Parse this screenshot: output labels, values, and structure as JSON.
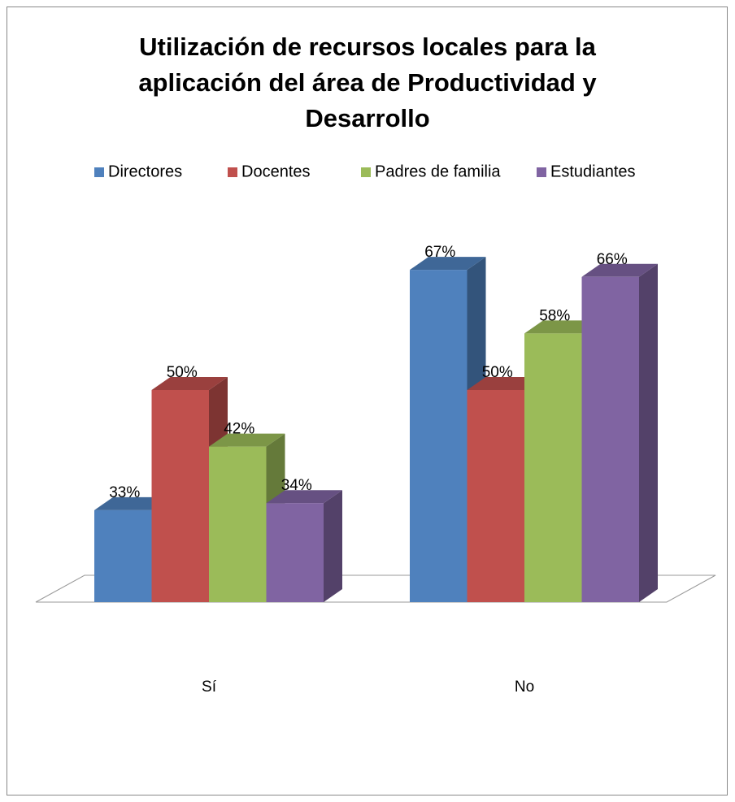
{
  "chart_data": {
    "type": "bar3d",
    "title": [
      "Utilización de recursos locales para la",
      "aplicación del área de Productividad y",
      "Desarrollo"
    ],
    "categories": [
      "Sí",
      "No"
    ],
    "series": [
      {
        "name": "Directores",
        "color": "#4f81bd",
        "values": [
          33,
          67
        ],
        "value_labels": [
          "33%",
          "67%"
        ]
      },
      {
        "name": "Docentes",
        "color": "#c0504d",
        "values": [
          50,
          50
        ],
        "value_labels": [
          "50%",
          "50%"
        ]
      },
      {
        "name": "Padres de familia",
        "color": "#9bbb59",
        "values": [
          42,
          58
        ],
        "value_labels": [
          "42%",
          "58%"
        ]
      },
      {
        "name": "Estudiantes",
        "color": "#8064a2",
        "values": [
          34,
          66
        ],
        "value_labels": [
          "34%",
          "66%"
        ]
      }
    ],
    "ylim": [
      20,
      80
    ],
    "legend": "top"
  }
}
